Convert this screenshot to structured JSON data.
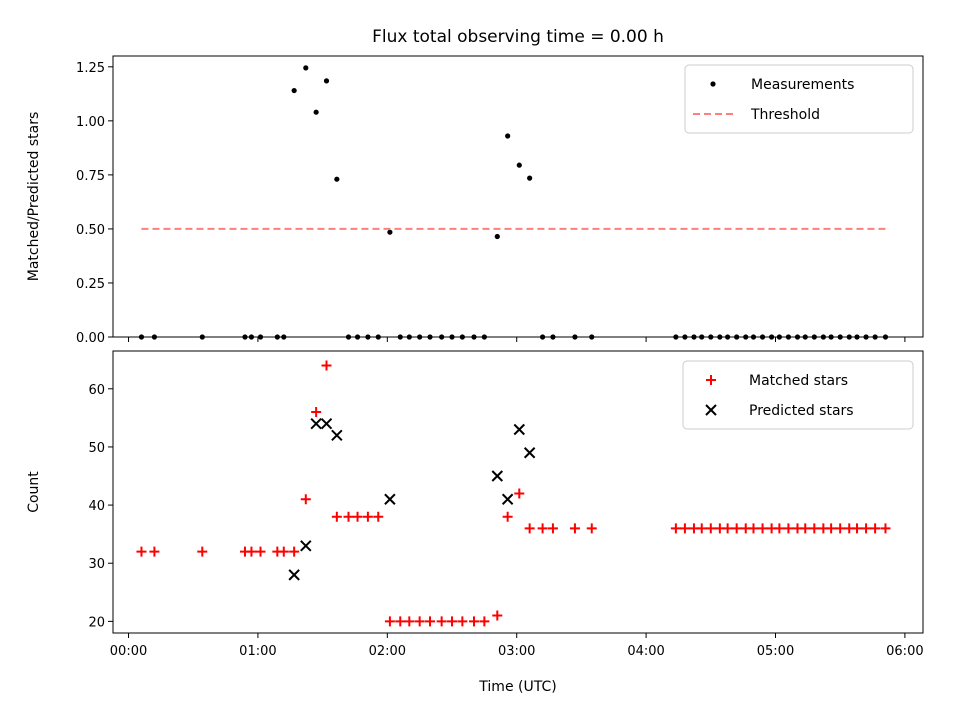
{
  "chart_data": {
    "title": "Flux total observing time = 0.00 h",
    "xlabel": "Time (UTC)",
    "x_unit": "hours",
    "xlim": [
      -0.12,
      6.14
    ],
    "x_ticks": [
      {
        "value": 0,
        "label": "00:00"
      },
      {
        "value": 1,
        "label": "01:00"
      },
      {
        "value": 2,
        "label": "02:00"
      },
      {
        "value": 3,
        "label": "03:00"
      },
      {
        "value": 4,
        "label": "04:00"
      },
      {
        "value": 5,
        "label": "05:00"
      },
      {
        "value": 6,
        "label": "06:00"
      }
    ],
    "panels": [
      {
        "type": "scatter",
        "ylabel": "Matched/Predicted stars",
        "ylim": [
          0,
          1.3
        ],
        "y_ticks": [
          "0.00",
          "0.25",
          "0.50",
          "0.75",
          "1.00",
          "1.25"
        ],
        "legend_position": "top-right",
        "series": [
          {
            "name": "Measurements",
            "kind": "dot",
            "color": "#000000",
            "points": [
              [
                0.1,
                0
              ],
              [
                0.2,
                0
              ],
              [
                0.57,
                0
              ],
              [
                0.9,
                0
              ],
              [
                0.95,
                0
              ],
              [
                1.02,
                0
              ],
              [
                1.15,
                0
              ],
              [
                1.2,
                0
              ],
              [
                1.28,
                1.14
              ],
              [
                1.37,
                1.245
              ],
              [
                1.45,
                1.04
              ],
              [
                1.53,
                1.185
              ],
              [
                1.61,
                0.73
              ],
              [
                1.7,
                0
              ],
              [
                1.77,
                0
              ],
              [
                1.85,
                0
              ],
              [
                1.93,
                0
              ],
              [
                2.02,
                0.485
              ],
              [
                2.1,
                0
              ],
              [
                2.17,
                0
              ],
              [
                2.25,
                0
              ],
              [
                2.33,
                0
              ],
              [
                2.42,
                0
              ],
              [
                2.5,
                0
              ],
              [
                2.58,
                0
              ],
              [
                2.67,
                0
              ],
              [
                2.75,
                0
              ],
              [
                2.85,
                0.465
              ],
              [
                2.93,
                0.93
              ],
              [
                3.02,
                0.795
              ],
              [
                3.1,
                0.735
              ],
              [
                3.2,
                0
              ],
              [
                3.28,
                0
              ],
              [
                3.45,
                0
              ],
              [
                3.58,
                0
              ],
              [
                4.23,
                0
              ],
              [
                4.3,
                0
              ],
              [
                4.37,
                0
              ],
              [
                4.43,
                0
              ],
              [
                4.5,
                0
              ],
              [
                4.57,
                0
              ],
              [
                4.63,
                0
              ],
              [
                4.7,
                0
              ],
              [
                4.77,
                0
              ],
              [
                4.83,
                0
              ],
              [
                4.9,
                0
              ],
              [
                4.97,
                0
              ],
              [
                5.03,
                0
              ],
              [
                5.1,
                0
              ],
              [
                5.17,
                0
              ],
              [
                5.23,
                0
              ],
              [
                5.3,
                0
              ],
              [
                5.37,
                0
              ],
              [
                5.43,
                0
              ],
              [
                5.5,
                0
              ],
              [
                5.57,
                0
              ],
              [
                5.63,
                0
              ],
              [
                5.7,
                0
              ],
              [
                5.77,
                0
              ],
              [
                5.85,
                0
              ]
            ]
          },
          {
            "name": "Threshold",
            "kind": "dashed-line",
            "color": "#ff7f7f",
            "points": [
              [
                0.1,
                0.5
              ],
              [
                5.85,
                0.5
              ]
            ]
          }
        ]
      },
      {
        "type": "scatter",
        "ylabel": "Count",
        "ylim": [
          18,
          66.5
        ],
        "y_ticks": [
          "20",
          "30",
          "40",
          "50",
          "60"
        ],
        "legend_position": "top-right",
        "series": [
          {
            "name": "Matched stars",
            "kind": "plus",
            "color": "#ff0000",
            "points": [
              [
                0.1,
                32
              ],
              [
                0.2,
                32
              ],
              [
                0.57,
                32
              ],
              [
                0.9,
                32
              ],
              [
                0.95,
                32
              ],
              [
                1.02,
                32
              ],
              [
                1.15,
                32
              ],
              [
                1.2,
                32
              ],
              [
                1.28,
                32
              ],
              [
                1.37,
                41
              ],
              [
                1.45,
                56
              ],
              [
                1.53,
                64
              ],
              [
                1.61,
                38
              ],
              [
                1.7,
                38
              ],
              [
                1.77,
                38
              ],
              [
                1.85,
                38
              ],
              [
                1.93,
                38
              ],
              [
                2.02,
                20
              ],
              [
                2.1,
                20
              ],
              [
                2.17,
                20
              ],
              [
                2.25,
                20
              ],
              [
                2.33,
                20
              ],
              [
                2.42,
                20
              ],
              [
                2.5,
                20
              ],
              [
                2.58,
                20
              ],
              [
                2.67,
                20
              ],
              [
                2.75,
                20
              ],
              [
                2.85,
                21
              ],
              [
                2.93,
                38
              ],
              [
                3.02,
                42
              ],
              [
                3.1,
                36
              ],
              [
                3.2,
                36
              ],
              [
                3.28,
                36
              ],
              [
                3.45,
                36
              ],
              [
                3.58,
                36
              ],
              [
                4.23,
                36
              ],
              [
                4.3,
                36
              ],
              [
                4.37,
                36
              ],
              [
                4.43,
                36
              ],
              [
                4.5,
                36
              ],
              [
                4.57,
                36
              ],
              [
                4.63,
                36
              ],
              [
                4.7,
                36
              ],
              [
                4.77,
                36
              ],
              [
                4.83,
                36
              ],
              [
                4.9,
                36
              ],
              [
                4.97,
                36
              ],
              [
                5.03,
                36
              ],
              [
                5.1,
                36
              ],
              [
                5.17,
                36
              ],
              [
                5.23,
                36
              ],
              [
                5.3,
                36
              ],
              [
                5.37,
                36
              ],
              [
                5.43,
                36
              ],
              [
                5.5,
                36
              ],
              [
                5.57,
                36
              ],
              [
                5.63,
                36
              ],
              [
                5.7,
                36
              ],
              [
                5.77,
                36
              ],
              [
                5.85,
                36
              ]
            ]
          },
          {
            "name": "Predicted stars",
            "kind": "x",
            "color": "#000000",
            "points": [
              [
                1.28,
                28
              ],
              [
                1.37,
                33
              ],
              [
                1.45,
                54
              ],
              [
                1.53,
                54
              ],
              [
                1.61,
                52
              ],
              [
                2.02,
                41
              ],
              [
                2.85,
                45
              ],
              [
                2.93,
                41
              ],
              [
                3.02,
                53
              ],
              [
                3.1,
                49
              ]
            ]
          }
        ]
      }
    ]
  }
}
